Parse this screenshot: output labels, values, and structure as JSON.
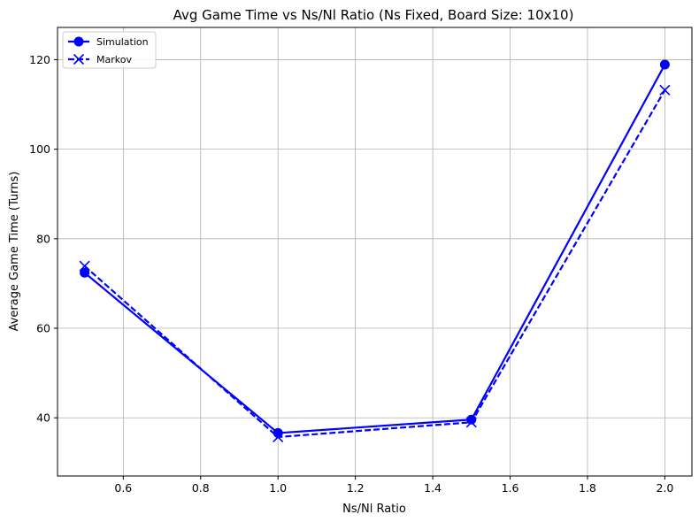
{
  "chart_data": {
    "type": "line",
    "title": "Avg Game Time vs Ns/Nl Ratio (Ns Fixed, Board Size: 10x10)",
    "xlabel": "Ns/Nl Ratio",
    "ylabel": "Average Game Time (Turns)",
    "x": [
      0.5,
      1.0,
      1.5,
      2.0
    ],
    "xlim": [
      0.43,
      2.07
    ],
    "ylim": [
      27.0,
      127.2
    ],
    "xticks": [
      "0.6",
      "0.8",
      "1.0",
      "1.2",
      "1.4",
      "1.6",
      "1.8",
      "2.0"
    ],
    "yticks": [
      "40",
      "60",
      "80",
      "100",
      "120"
    ],
    "grid": true,
    "legend_position": "top-left",
    "series": [
      {
        "name": "Simulation",
        "values": [
          72.4,
          36.6,
          39.6,
          118.9
        ],
        "color": "#0000ff",
        "line_style": "solid",
        "marker": "circle"
      },
      {
        "name": "Markov",
        "values": [
          73.9,
          35.7,
          39.0,
          113.2
        ],
        "color": "#0000ff",
        "line_style": "dashed",
        "marker": "x"
      }
    ]
  }
}
